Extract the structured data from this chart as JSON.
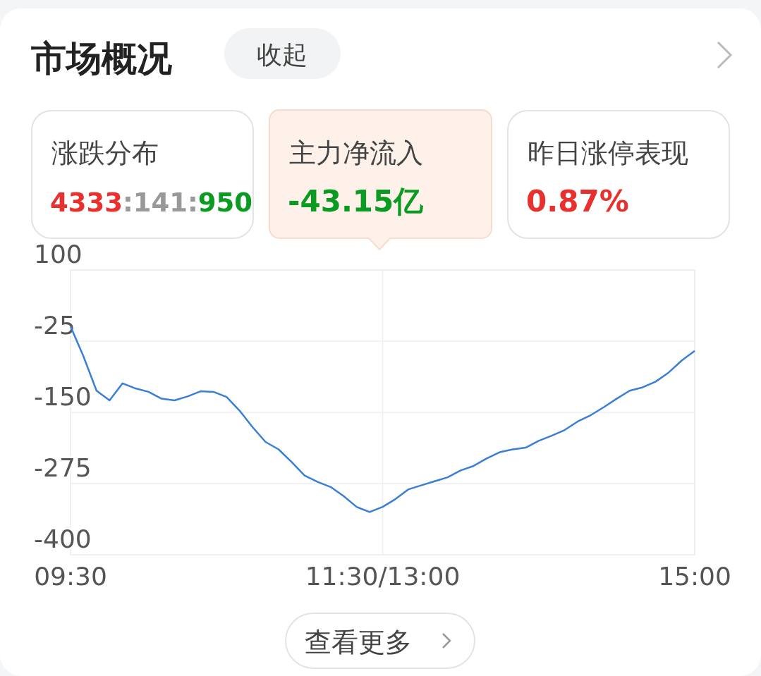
{
  "chart_data": {
    "type": "line",
    "title": "市场概况",
    "annotations": [
      "收起",
      "涨跌分布",
      "4333:141:950",
      "主力净流入",
      "-43.15亿",
      "昨日涨停表现",
      "0.87%",
      "查看更多"
    ],
    "categories": [
      "09:30",
      null,
      null,
      null,
      null,
      null,
      null,
      null,
      null,
      null,
      null,
      null,
      null,
      null,
      null,
      null,
      null,
      null,
      null,
      null,
      null,
      null,
      null,
      null,
      "11:30/13:00",
      null,
      null,
      null,
      null,
      null,
      null,
      null,
      null,
      null,
      null,
      null,
      null,
      null,
      null,
      null,
      null,
      null,
      null,
      null,
      null,
      null,
      null,
      null,
      "15:00"
    ],
    "series": [
      {
        "color": "#3b7fd4",
        "values": [
          1,
          -52,
          -112,
          -129,
          -99,
          -108,
          -114,
          -126,
          -129,
          -122,
          -113,
          -114,
          -123,
          -147,
          -176,
          -202,
          -215,
          -237,
          -261,
          -272,
          -281,
          -297,
          -316,
          -325,
          -316,
          -302,
          -285,
          -278,
          -271,
          -264,
          -252,
          -244,
          -231,
          -220,
          -215,
          -212,
          -200,
          -191,
          -181,
          -166,
          -155,
          -141,
          -126,
          -112,
          -106,
          -96,
          -80,
          -59,
          -42
        ]
      }
    ],
    "ylim": [
      -400,
      100
    ],
    "yticks": [
      100,
      -25,
      -150,
      -275,
      -400
    ],
    "grid": true,
    "marker": "none",
    "line_style": "solid"
  }
}
